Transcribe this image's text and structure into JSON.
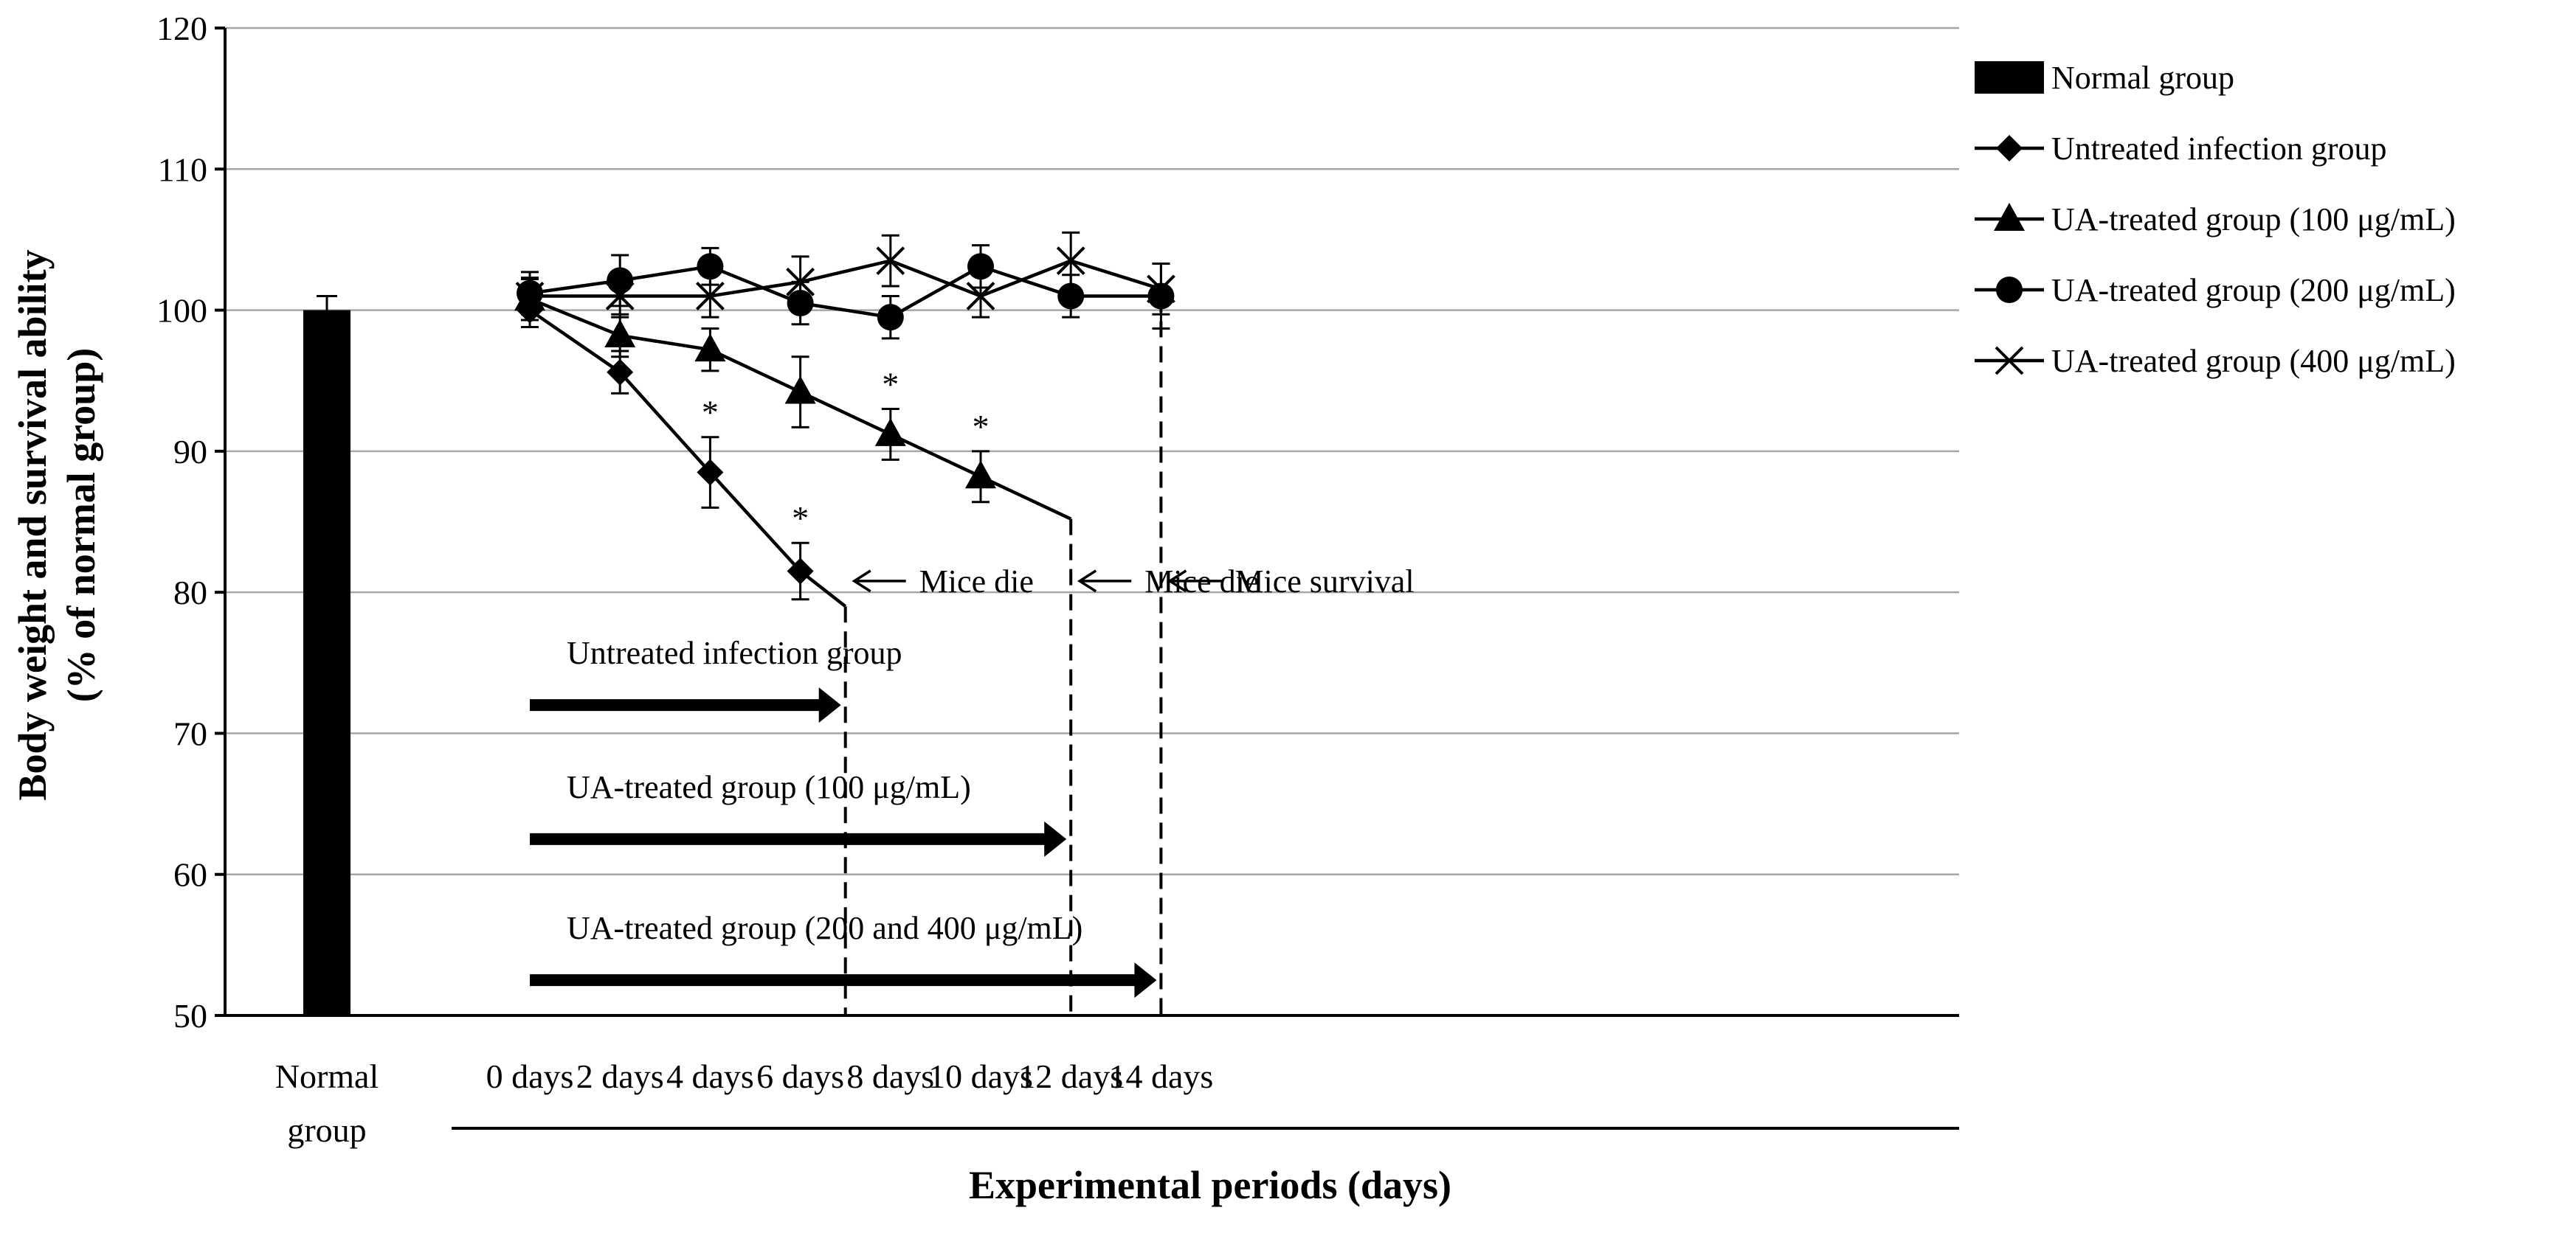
{
  "chart_data": {
    "type": "line",
    "title": "",
    "ylabel_line1": "Body weight and survival  ability",
    "ylabel_line2": "(% of normal group)",
    "xlabel": "Experimental periods (days)",
    "ylim": [
      50,
      120
    ],
    "yticks": [
      "50",
      "60",
      "70",
      "80",
      "90",
      "100",
      "110",
      "120"
    ],
    "grid": true,
    "categories": [
      {
        "line1": "Normal",
        "line2": "group"
      },
      {
        "line1": "0 days",
        "line2": ""
      },
      {
        "line1": "2 days",
        "line2": ""
      },
      {
        "line1": "4 days",
        "line2": ""
      },
      {
        "line1": "6 days",
        "line2": ""
      },
      {
        "line1": "8 days",
        "line2": ""
      },
      {
        "line1": "10 days",
        "line2": ""
      },
      {
        "line1": "12 days",
        "line2": ""
      },
      {
        "line1": "14 days",
        "line2": ""
      }
    ],
    "normal_bar": {
      "name": "Normal group",
      "value": 100,
      "error": 1
    },
    "series": [
      {
        "name": "Untreated infection group",
        "marker": "diamond",
        "x": [
          0,
          2,
          4,
          6,
          7
        ],
        "values": [
          100,
          95.6,
          88.5,
          81.5,
          79
        ],
        "errors": [
          1.2,
          1.5,
          2.5,
          2,
          0
        ],
        "significant": [
          false,
          false,
          true,
          true,
          false
        ]
      },
      {
        "name": "UA-treated group (100 μg/mL)",
        "marker": "triangle",
        "x": [
          0,
          2,
          4,
          6,
          8,
          10,
          12
        ],
        "values": [
          100.8,
          98.2,
          97.2,
          94.2,
          91.2,
          88.2,
          85.2
        ],
        "errors": [
          1.5,
          1.5,
          1.5,
          2.5,
          1.8,
          1.8,
          0
        ],
        "significant": [
          false,
          false,
          false,
          false,
          true,
          true,
          false
        ]
      },
      {
        "name": "UA-treated group (200 μg/mL)",
        "marker": "circle",
        "x": [
          0,
          2,
          4,
          6,
          8,
          10,
          12,
          14
        ],
        "values": [
          101.2,
          102.1,
          103.1,
          100.5,
          99.5,
          103.1,
          101,
          101
        ],
        "errors": [
          1.5,
          1.8,
          1.3,
          1.5,
          1.5,
          1.5,
          1.5,
          2.3
        ],
        "significant": [
          false,
          false,
          false,
          false,
          false,
          false,
          false,
          false
        ]
      },
      {
        "name": "UA-treated group (400 μg/mL)",
        "marker": "x",
        "x": [
          0,
          2,
          4,
          6,
          8,
          10,
          12,
          14
        ],
        "values": [
          101,
          101,
          101,
          102,
          103.5,
          101,
          103.5,
          101.5
        ],
        "errors": [
          1.2,
          1.5,
          1.5,
          1.8,
          1.8,
          1.5,
          2,
          1.8
        ],
        "significant": [
          false,
          false,
          false,
          false,
          false,
          false,
          false,
          false
        ]
      }
    ],
    "significance_symbol": "*",
    "legend": [
      {
        "label": "Normal group",
        "marker": "bar"
      },
      {
        "label": "Untreated infection group",
        "marker": "diamond"
      },
      {
        "label": "UA-treated group (100 μg/mL)",
        "marker": "triangle"
      },
      {
        "label": "UA-treated group (200 μg/mL)",
        "marker": "circle"
      },
      {
        "label": "UA-treated group (400 μg/mL)",
        "marker": "x"
      }
    ],
    "cutoff_lines": [
      {
        "day": 7,
        "label": "Mice die"
      },
      {
        "day": 12,
        "label": "Mice die"
      },
      {
        "day": 14,
        "label": "Mice survival"
      }
    ],
    "duration_arrows": [
      {
        "label": "Untreated infection group",
        "start_day": 0,
        "end_day": 7,
        "y": 72
      },
      {
        "label": "UA-treated group (100 μg/mL)",
        "start_day": 0,
        "end_day": 12,
        "y": 62.5
      },
      {
        "label": "UA-treated group (200 and 400 μg/mL)",
        "start_day": 0,
        "end_day": 14,
        "y": 52.5
      }
    ]
  }
}
